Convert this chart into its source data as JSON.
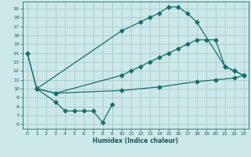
{
  "xlabel": "Humidex (Indice chaleur)",
  "bg_color": "#cce8e8",
  "grid_color": "#aacccc",
  "line_color": "#1a6e6e",
  "xlim": [
    -0.5,
    23.5
  ],
  "ylim": [
    5.5,
    19.8
  ],
  "yticks": [
    6,
    7,
    8,
    9,
    10,
    11,
    12,
    13,
    14,
    15,
    16,
    17,
    18,
    19
  ],
  "xticks": [
    0,
    1,
    2,
    3,
    4,
    5,
    6,
    7,
    8,
    9,
    10,
    11,
    12,
    13,
    14,
    15,
    16,
    17,
    18,
    19,
    20,
    21,
    22,
    23
  ],
  "line1_x": [
    0,
    1,
    10,
    12,
    13,
    14,
    15,
    16,
    17,
    18,
    21,
    22,
    23
  ],
  "line1_y": [
    14,
    10,
    16.5,
    17.5,
    18.0,
    18.5,
    19.2,
    19.2,
    18.5,
    17.5,
    12.5,
    12.0,
    11.5
  ],
  "line2_x": [
    1,
    3,
    10,
    11,
    12,
    13,
    14,
    15,
    16,
    17,
    18,
    19,
    20,
    21,
    22,
    23
  ],
  "line2_y": [
    10.0,
    9.5,
    11.5,
    12.0,
    12.5,
    13.0,
    13.5,
    14.0,
    14.5,
    15.0,
    15.5,
    15.5,
    15.5,
    12.5,
    12.0,
    11.5
  ],
  "line3_x": [
    1,
    3,
    10,
    14,
    18,
    20,
    22,
    23
  ],
  "line3_y": [
    10.0,
    9.5,
    9.8,
    10.2,
    10.8,
    11.0,
    11.2,
    11.5
  ],
  "line4_x": [
    0,
    1,
    3,
    4,
    5,
    6,
    7,
    8,
    9
  ],
  "line4_y": [
    14.0,
    10.0,
    8.5,
    7.5,
    7.5,
    7.5,
    7.5,
    6.2,
    8.2
  ]
}
